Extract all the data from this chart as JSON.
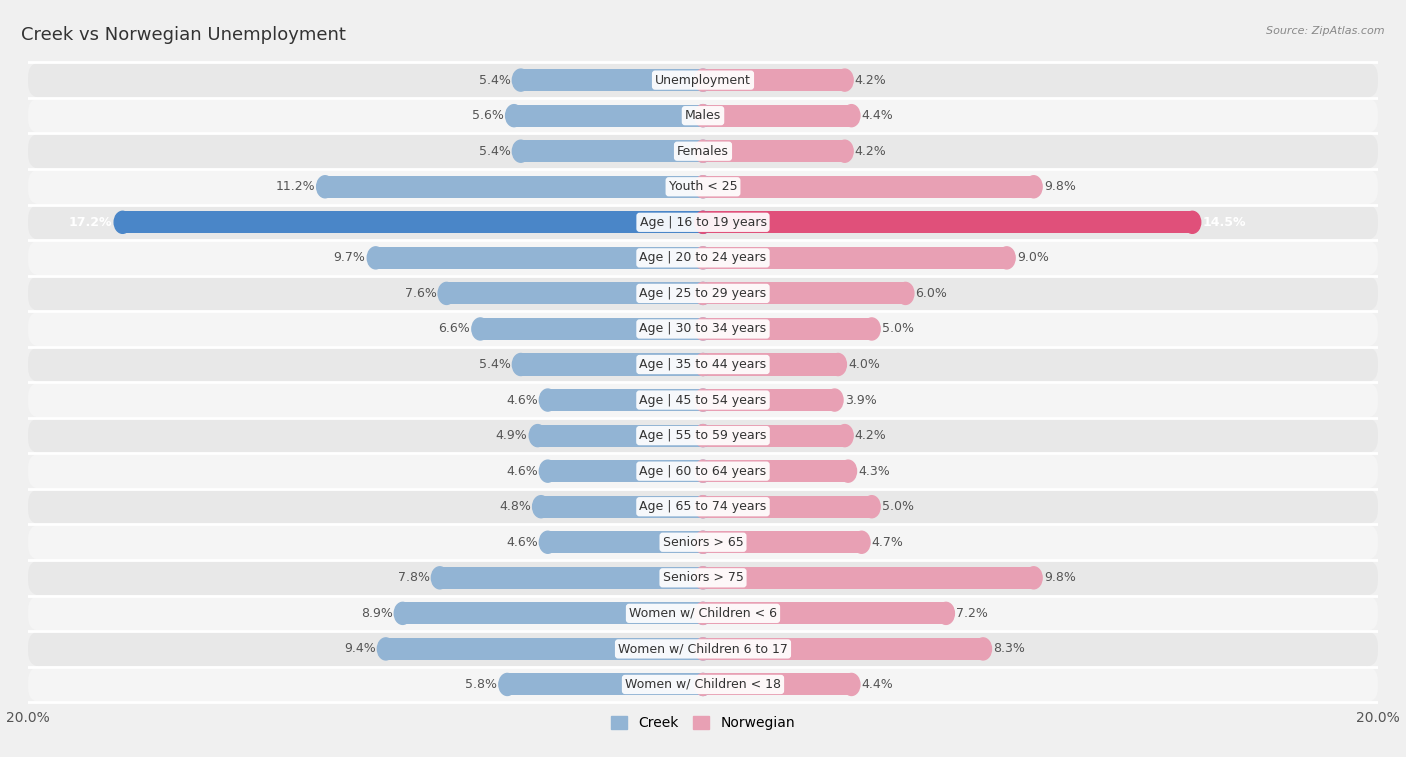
{
  "title": "Creek vs Norwegian Unemployment",
  "source": "Source: ZipAtlas.com",
  "categories": [
    "Unemployment",
    "Males",
    "Females",
    "Youth < 25",
    "Age | 16 to 19 years",
    "Age | 20 to 24 years",
    "Age | 25 to 29 years",
    "Age | 30 to 34 years",
    "Age | 35 to 44 years",
    "Age | 45 to 54 years",
    "Age | 55 to 59 years",
    "Age | 60 to 64 years",
    "Age | 65 to 74 years",
    "Seniors > 65",
    "Seniors > 75",
    "Women w/ Children < 6",
    "Women w/ Children 6 to 17",
    "Women w/ Children < 18"
  ],
  "creek_values": [
    5.4,
    5.6,
    5.4,
    11.2,
    17.2,
    9.7,
    7.6,
    6.6,
    5.4,
    4.6,
    4.9,
    4.6,
    4.8,
    4.6,
    7.8,
    8.9,
    9.4,
    5.8
  ],
  "norwegian_values": [
    4.2,
    4.4,
    4.2,
    9.8,
    14.5,
    9.0,
    6.0,
    5.0,
    4.0,
    3.9,
    4.2,
    4.3,
    5.0,
    4.7,
    9.8,
    7.2,
    8.3,
    4.4
  ],
  "creek_color": "#92b4d4",
  "norwegian_color": "#e8a0b4",
  "creek_highlight_color": "#4a86c8",
  "norwegian_highlight_color": "#e0507a",
  "bar_height": 0.62,
  "max_value": 20.0,
  "bg_color": "#f0f0f0",
  "row_color_even": "#e8e8e8",
  "row_color_odd": "#f5f5f5",
  "title_fontsize": 13,
  "label_fontsize": 9,
  "value_fontsize": 9,
  "axis_label_fontsize": 10
}
